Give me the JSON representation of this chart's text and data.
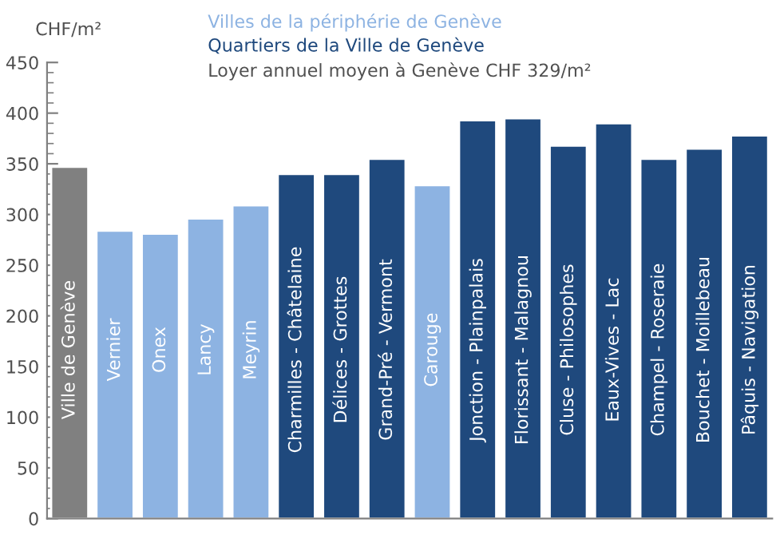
{
  "chart_data": {
    "type": "bar",
    "subtitle": "Loyer annuel moyen à Genève CHF 329/m²",
    "ylabel": "CHF/m²",
    "categories": [
      "Ville de Genève",
      "Vernier",
      "Onex",
      "Lancy",
      "Meyrin",
      "Charmilles - Châtelaine",
      "Délices - Grottes",
      "Grand-Pré - Vermont",
      "Carouge",
      "Jonction - Plainpalais",
      "Florissant - Malagnou",
      "Cluse - Philosophes",
      "Eaux-Vives - Lac",
      "Champel - Roseraie",
      "Bouchet - Moillebeau",
      "Pâquis - Navigation"
    ],
    "series": [
      {
        "name": "Villes de la périphérie de Genève",
        "color": "#8db3e2",
        "values": [
          null,
          284,
          281,
          296,
          309,
          null,
          null,
          null,
          329,
          null,
          null,
          null,
          null,
          null,
          null,
          null
        ]
      },
      {
        "name": "Quartiers de la Ville de Genève",
        "color": "#1f497d",
        "values": [
          null,
          null,
          null,
          null,
          null,
          340,
          340,
          355,
          null,
          393,
          395,
          368,
          390,
          355,
          365,
          378
        ]
      },
      {
        "color": "#808080",
        "values": [
          347,
          null,
          null,
          null,
          null,
          null,
          null,
          null,
          null,
          null,
          null,
          null,
          null,
          null,
          null,
          null
        ]
      }
    ],
    "ylim": [
      0,
      450
    ],
    "yticks": [
      0,
      50,
      100,
      150,
      200,
      250,
      300,
      350,
      400,
      450
    ],
    "grid": false,
    "legend": "top"
  }
}
